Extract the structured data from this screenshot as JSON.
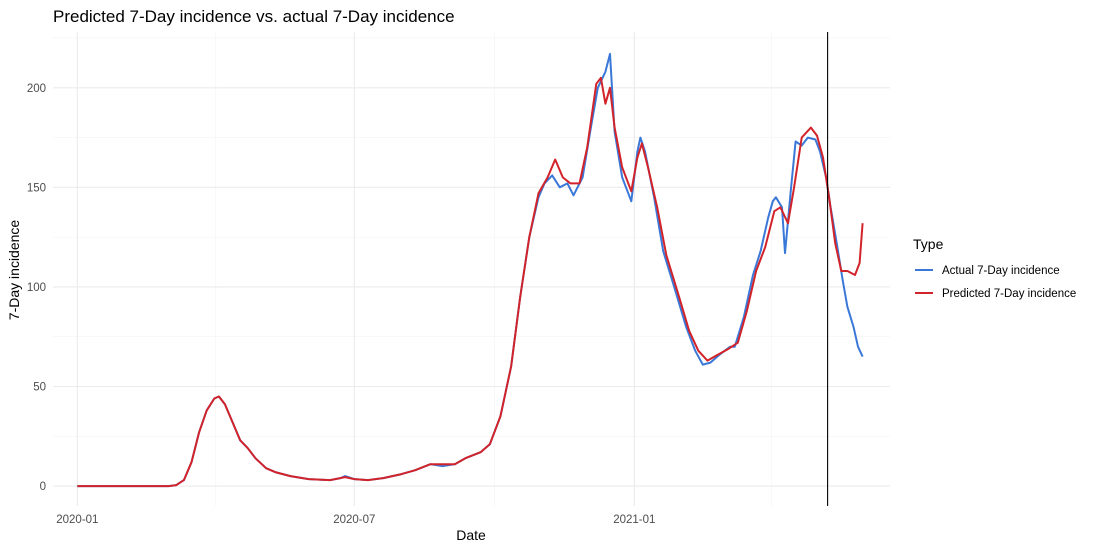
{
  "chart_data": {
    "type": "line",
    "title": "Predicted 7-Day incidence vs. actual 7-Day incidence",
    "xlabel": "Date",
    "ylabel": "7-Day incidence",
    "xlim": [
      "2019-12-16",
      "2021-06-18"
    ],
    "ylim": [
      -10,
      228
    ],
    "x_ticks": [
      {
        "date": "2020-01-01",
        "label": "2020-01"
      },
      {
        "date": "2020-07-01",
        "label": "2020-07"
      },
      {
        "date": "2021-01-01",
        "label": "2021-01"
      }
    ],
    "y_ticks": [
      0,
      50,
      100,
      150,
      200
    ],
    "grid": true,
    "legend": {
      "title": "Type",
      "position": "right",
      "entries": [
        "Actual 7-Day incidence",
        "Predicted 7-Day incidence"
      ]
    },
    "vline": "2021-05-08",
    "series": [
      {
        "name": "Actual 7-Day incidence",
        "color": "#3a78d8",
        "points": [
          [
            "2020-01-01",
            0
          ],
          [
            "2020-02-01",
            0
          ],
          [
            "2020-03-01",
            0
          ],
          [
            "2020-03-06",
            0.5
          ],
          [
            "2020-03-11",
            3
          ],
          [
            "2020-03-16",
            12
          ],
          [
            "2020-03-21",
            27
          ],
          [
            "2020-03-26",
            38
          ],
          [
            "2020-03-31",
            44
          ],
          [
            "2020-04-03",
            45
          ],
          [
            "2020-04-07",
            41
          ],
          [
            "2020-04-12",
            32
          ],
          [
            "2020-04-17",
            23
          ],
          [
            "2020-04-22",
            19
          ],
          [
            "2020-04-27",
            14
          ],
          [
            "2020-05-04",
            9
          ],
          [
            "2020-05-10",
            7
          ],
          [
            "2020-05-20",
            5
          ],
          [
            "2020-06-01",
            3.5
          ],
          [
            "2020-06-15",
            3
          ],
          [
            "2020-06-22",
            4
          ],
          [
            "2020-06-25",
            5
          ],
          [
            "2020-07-01",
            3.5
          ],
          [
            "2020-07-10",
            3
          ],
          [
            "2020-07-20",
            4
          ],
          [
            "2020-08-01",
            6
          ],
          [
            "2020-08-10",
            8
          ],
          [
            "2020-08-20",
            11
          ],
          [
            "2020-08-28",
            10
          ],
          [
            "2020-09-05",
            11
          ],
          [
            "2020-09-12",
            14
          ],
          [
            "2020-09-22",
            17
          ],
          [
            "2020-09-28",
            21
          ],
          [
            "2020-10-05",
            35
          ],
          [
            "2020-10-12",
            60
          ],
          [
            "2020-10-18",
            95
          ],
          [
            "2020-10-24",
            125
          ],
          [
            "2020-10-30",
            145
          ],
          [
            "2020-11-03",
            152
          ],
          [
            "2020-11-08",
            156
          ],
          [
            "2020-11-13",
            150
          ],
          [
            "2020-11-18",
            152
          ],
          [
            "2020-11-22",
            146
          ],
          [
            "2020-11-28",
            155
          ],
          [
            "2020-12-03",
            178
          ],
          [
            "2020-12-08",
            200
          ],
          [
            "2020-12-13",
            208
          ],
          [
            "2020-12-16",
            217
          ],
          [
            "2020-12-19",
            178
          ],
          [
            "2020-12-24",
            155
          ],
          [
            "2020-12-30",
            143
          ],
          [
            "2021-01-03",
            168
          ],
          [
            "2021-01-05",
            175
          ],
          [
            "2021-01-08",
            168
          ],
          [
            "2021-01-14",
            145
          ],
          [
            "2021-01-20",
            118
          ],
          [
            "2021-01-28",
            98
          ],
          [
            "2021-02-04",
            80
          ],
          [
            "2021-02-10",
            68
          ],
          [
            "2021-02-15",
            61
          ],
          [
            "2021-02-20",
            62
          ],
          [
            "2021-02-26",
            66
          ],
          [
            "2021-03-05",
            70
          ],
          [
            "2021-03-08",
            70
          ],
          [
            "2021-03-14",
            85
          ],
          [
            "2021-03-20",
            106
          ],
          [
            "2021-03-25",
            118
          ],
          [
            "2021-03-30",
            135
          ],
          [
            "2021-04-02",
            143
          ],
          [
            "2021-04-04",
            145
          ],
          [
            "2021-04-08",
            140
          ],
          [
            "2021-04-10",
            117
          ],
          [
            "2021-04-14",
            150
          ],
          [
            "2021-04-17",
            173
          ],
          [
            "2021-04-21",
            171
          ],
          [
            "2021-04-25",
            175
          ],
          [
            "2021-04-30",
            174
          ],
          [
            "2021-05-03",
            168
          ],
          [
            "2021-05-07",
            155
          ],
          [
            "2021-05-10",
            140
          ],
          [
            "2021-05-14",
            122
          ],
          [
            "2021-05-18",
            103
          ],
          [
            "2021-05-21",
            90
          ],
          [
            "2021-05-25",
            80
          ],
          [
            "2021-05-28",
            70
          ],
          [
            "2021-05-31",
            65
          ]
        ]
      },
      {
        "name": "Predicted 7-Day incidence",
        "color": "#d2232a",
        "points": [
          [
            "2020-01-01",
            0
          ],
          [
            "2020-02-01",
            0
          ],
          [
            "2020-03-01",
            0
          ],
          [
            "2020-03-06",
            0.5
          ],
          [
            "2020-03-11",
            3
          ],
          [
            "2020-03-16",
            12
          ],
          [
            "2020-03-21",
            27
          ],
          [
            "2020-03-26",
            38
          ],
          [
            "2020-03-31",
            44
          ],
          [
            "2020-04-03",
            45
          ],
          [
            "2020-04-07",
            41
          ],
          [
            "2020-04-12",
            32
          ],
          [
            "2020-04-17",
            23
          ],
          [
            "2020-04-22",
            19
          ],
          [
            "2020-04-27",
            14
          ],
          [
            "2020-05-04",
            9
          ],
          [
            "2020-05-10",
            7
          ],
          [
            "2020-05-20",
            5
          ],
          [
            "2020-06-01",
            3.5
          ],
          [
            "2020-06-15",
            3
          ],
          [
            "2020-06-25",
            4.5
          ],
          [
            "2020-07-01",
            3.5
          ],
          [
            "2020-07-10",
            3
          ],
          [
            "2020-07-20",
            4
          ],
          [
            "2020-08-01",
            6
          ],
          [
            "2020-08-10",
            8
          ],
          [
            "2020-08-20",
            11
          ],
          [
            "2020-08-28",
            11
          ],
          [
            "2020-09-05",
            11
          ],
          [
            "2020-09-12",
            14
          ],
          [
            "2020-09-22",
            17
          ],
          [
            "2020-09-28",
            21
          ],
          [
            "2020-10-05",
            35
          ],
          [
            "2020-10-12",
            60
          ],
          [
            "2020-10-18",
            95
          ],
          [
            "2020-10-24",
            125
          ],
          [
            "2020-10-30",
            147
          ],
          [
            "2020-11-05",
            155
          ],
          [
            "2020-11-10",
            164
          ],
          [
            "2020-11-15",
            155
          ],
          [
            "2020-11-20",
            152
          ],
          [
            "2020-11-26",
            152
          ],
          [
            "2020-12-01",
            170
          ],
          [
            "2020-12-07",
            202
          ],
          [
            "2020-12-10",
            205
          ],
          [
            "2020-12-13",
            192
          ],
          [
            "2020-12-16",
            200
          ],
          [
            "2020-12-19",
            180
          ],
          [
            "2020-12-24",
            160
          ],
          [
            "2020-12-30",
            148
          ],
          [
            "2021-01-03",
            165
          ],
          [
            "2021-01-06",
            172
          ],
          [
            "2021-01-10",
            160
          ],
          [
            "2021-01-16",
            140
          ],
          [
            "2021-01-22",
            116
          ],
          [
            "2021-01-30",
            96
          ],
          [
            "2021-02-06",
            78
          ],
          [
            "2021-02-12",
            68
          ],
          [
            "2021-02-18",
            63
          ],
          [
            "2021-02-25",
            66
          ],
          [
            "2021-03-04",
            69
          ],
          [
            "2021-03-10",
            72
          ],
          [
            "2021-03-16",
            88
          ],
          [
            "2021-03-22",
            108
          ],
          [
            "2021-03-28",
            120
          ],
          [
            "2021-04-03",
            138
          ],
          [
            "2021-04-07",
            140
          ],
          [
            "2021-04-12",
            132
          ],
          [
            "2021-04-16",
            150
          ],
          [
            "2021-04-21",
            175
          ],
          [
            "2021-04-27",
            180
          ],
          [
            "2021-05-01",
            176
          ],
          [
            "2021-05-05",
            165
          ],
          [
            "2021-05-09",
            145
          ],
          [
            "2021-05-13",
            122
          ],
          [
            "2021-05-17",
            108
          ],
          [
            "2021-05-21",
            108
          ],
          [
            "2021-05-26",
            106
          ],
          [
            "2021-05-29",
            112
          ],
          [
            "2021-05-31",
            132
          ]
        ]
      }
    ]
  }
}
